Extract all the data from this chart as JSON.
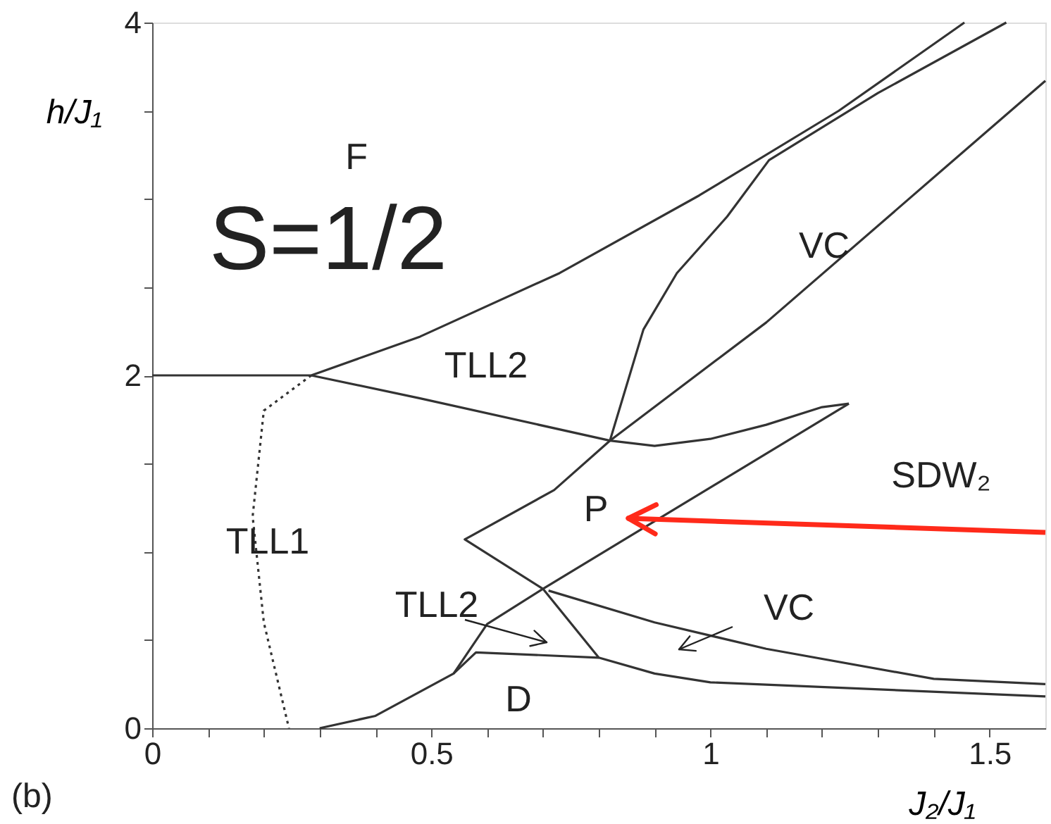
{
  "chart_data": {
    "type": "line",
    "xlabel": "J₂/J₁",
    "ylabel": "h/J₁",
    "xlim": [
      0,
      1.6
    ],
    "ylim": [
      0,
      4
    ],
    "xticks": [
      0,
      {
        "value": 0.1,
        "label": null
      },
      {
        "value": 0.2,
        "label": null
      },
      {
        "value": 0.3,
        "label": null
      },
      {
        "value": 0.4,
        "label": null
      },
      0.5,
      {
        "value": 0.6,
        "label": null
      },
      {
        "value": 0.7,
        "label": null
      },
      {
        "value": 0.8,
        "label": null
      },
      {
        "value": 0.9,
        "label": null
      },
      1,
      {
        "value": 1.1,
        "label": null
      },
      {
        "value": 1.2,
        "label": null
      },
      {
        "value": 1.3,
        "label": null
      },
      {
        "value": 1.4,
        "label": null
      },
      1.5
    ],
    "yticks": [
      0,
      {
        "value": 0.5,
        "label": null
      },
      {
        "value": 1,
        "label": null
      },
      {
        "value": 1.5,
        "label": null
      },
      2,
      {
        "value": 2.5,
        "label": null
      },
      {
        "value": 3,
        "label": null
      },
      {
        "value": 3.5,
        "label": null
      },
      4
    ],
    "grid": false,
    "legend": false,
    "marker": "none",
    "series": [
      {
        "color": "#333333",
        "line_style": "solid",
        "x": [
          0,
          0.285,
          0.48,
          0.73,
          0.98,
          1.23,
          1.455
        ],
        "values": [
          2,
          2,
          2.22,
          2.58,
          3.02,
          3.5,
          4.0
        ]
      },
      {
        "color": "#333333",
        "line_style": "solid",
        "x": [
          0.285,
          0.48,
          0.82,
          0.9,
          1.0,
          1.1,
          1.2,
          1.248
        ],
        "values": [
          2,
          1.87,
          1.63,
          1.6,
          1.64,
          1.72,
          1.82,
          1.84
        ]
      },
      {
        "color": "#333333",
        "line_style": "solid",
        "x": [
          0.3,
          0.4,
          0.54,
          0.6,
          0.7,
          1.248
        ],
        "values": [
          0,
          0.07,
          0.31,
          0.59,
          0.79,
          1.84
        ]
      },
      {
        "color": "#333333",
        "line_style": "solid",
        "x": [
          1.6,
          1.1,
          0.82,
          0.72,
          0.56,
          0.7,
          0.8,
          0.9,
          1.0,
          1.6
        ],
        "values": [
          3.67,
          2.3,
          1.63,
          1.35,
          1.07,
          0.79,
          0.4,
          0.31,
          0.26,
          0.18
        ]
      },
      {
        "color": "#333333",
        "line_style": "solid",
        "x": [
          0.82,
          0.88,
          0.94,
          1.03,
          1.105,
          1.3,
          1.53
        ],
        "values": [
          1.63,
          2.26,
          2.58,
          2.9,
          3.22,
          3.6,
          4.0
        ]
      },
      {
        "color": "#333333",
        "line_style": "solid",
        "x": [
          0.71,
          0.9,
          1.1,
          1.4,
          1.6
        ],
        "values": [
          0.78,
          0.6,
          0.45,
          0.28,
          0.25
        ]
      },
      {
        "color": "#333333",
        "line_style": "solid",
        "x": [
          0.54,
          0.58,
          0.8
        ],
        "values": [
          0.31,
          0.43,
          0.4
        ]
      },
      {
        "color": "#333333",
        "line_style": "dotted",
        "x": [
          0.285,
          0.2,
          0.18,
          0.2,
          0.245
        ],
        "values": [
          2,
          1.8,
          1.2,
          0.6,
          0
        ]
      }
    ],
    "annotations": [
      "F",
      "S=1/2",
      "VC",
      "TLL2",
      "SDW₂",
      "P",
      "TLL1",
      "TLL2",
      "VC",
      "D",
      "(b)"
    ]
  }
}
